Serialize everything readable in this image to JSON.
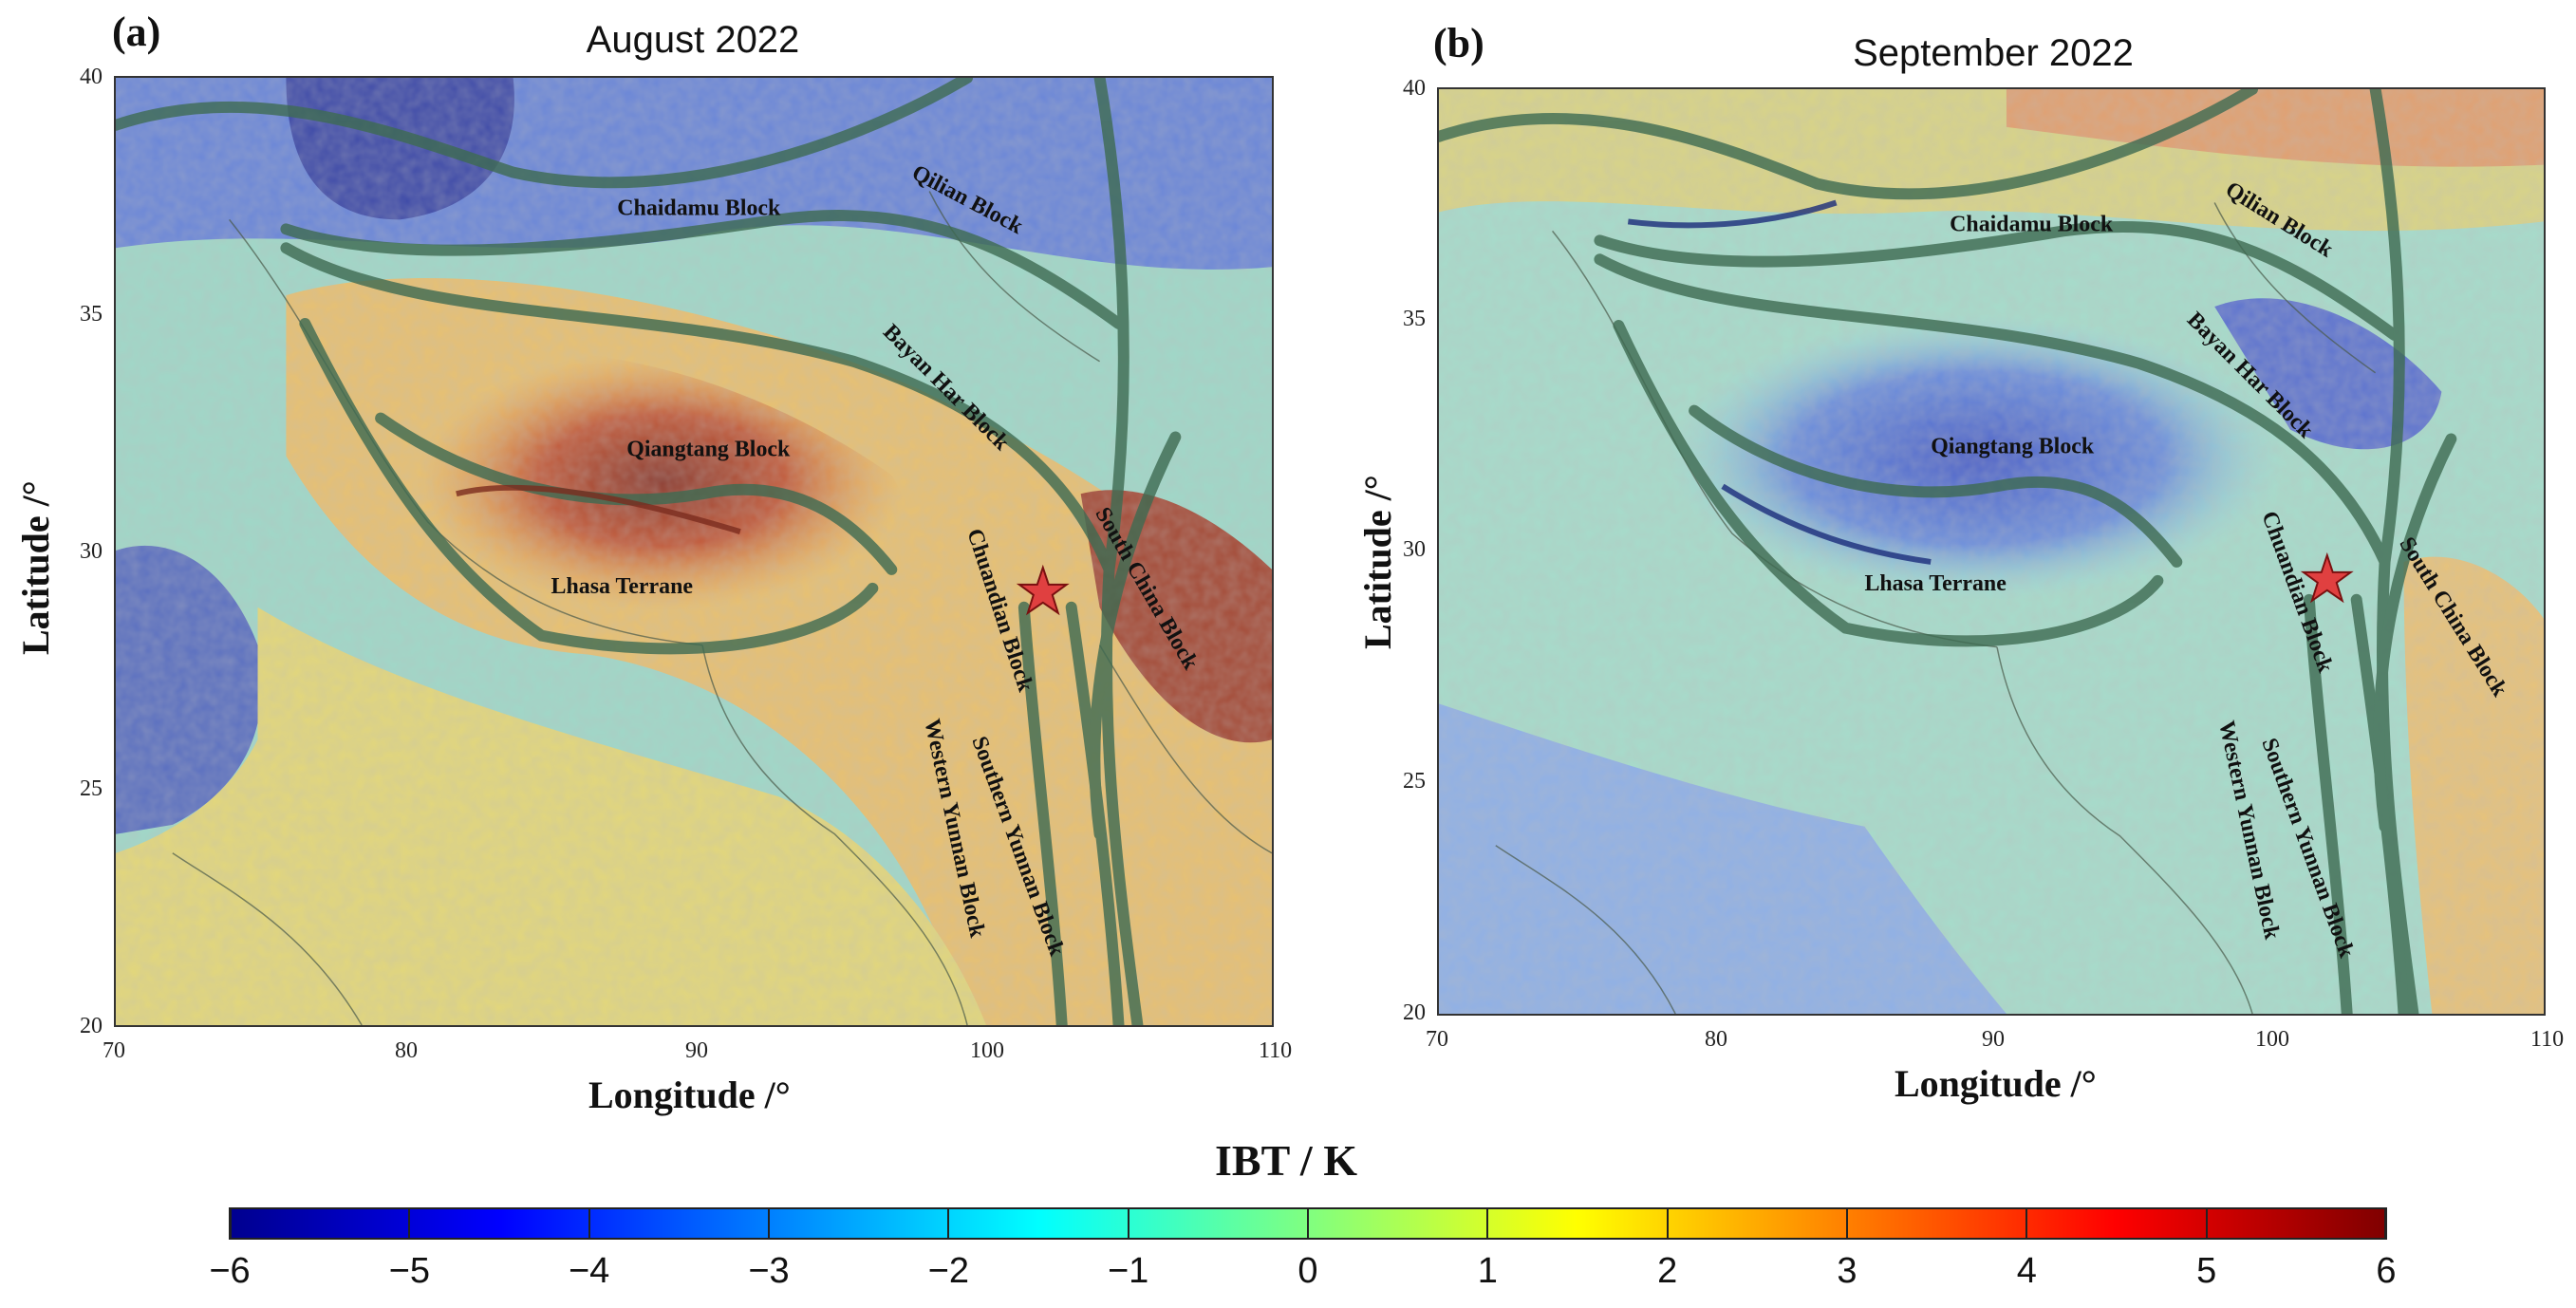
{
  "panels": [
    {
      "letter": "(a)",
      "title": "August 2022",
      "xlabel": "Longitude /°",
      "ylabel": "Latitude /°",
      "xticks": [
        "70",
        "80",
        "90",
        "100",
        "110"
      ],
      "yticks": [
        "40",
        "35",
        "30",
        "25",
        "20"
      ],
      "blocks": [
        "Chaidamu Block",
        "Qilian Block",
        "Bayan Har Block",
        "Qiangtang Block",
        "Lhasa Terrane",
        "Chuandian Block",
        "South China Block",
        "Western Yunnan Block",
        "Southern Yunnan Block"
      ],
      "epicenter": "star-marker"
    },
    {
      "letter": "(b)",
      "title": "September 2022",
      "xlabel": "Longitude /°",
      "ylabel": "Latitude /°",
      "xticks": [
        "70",
        "80",
        "90",
        "100",
        "110"
      ],
      "yticks": [
        "40",
        "35",
        "30",
        "25",
        "20"
      ],
      "blocks": [
        "Chaidamu Block",
        "Qilian Block",
        "Bayan Har Block",
        "Qiangtang Block",
        "Lhasa Terrane",
        "Chuandian Block",
        "South China Block",
        "Western Yunnan Block",
        "Southern Yunnan Block"
      ],
      "epicenter": "star-marker"
    }
  ],
  "colorbar": {
    "title": "IBT / K",
    "ticks": [
      "−6",
      "−5",
      "−4",
      "−3",
      "−2",
      "−1",
      "0",
      "1",
      "2",
      "3",
      "4",
      "5",
      "6"
    ],
    "colors": [
      "#00008f",
      "#0000ff",
      "#0080ff",
      "#00ffff",
      "#80ff80",
      "#ffff00",
      "#ff8000",
      "#ff0000",
      "#800000"
    ]
  }
}
